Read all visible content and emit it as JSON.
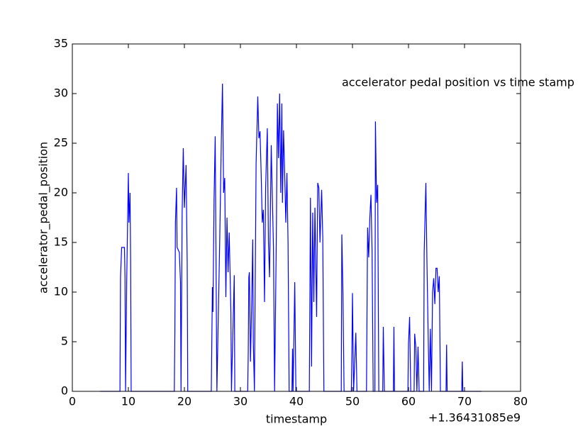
{
  "chart_data": {
    "type": "line",
    "title": "accelerator pedal position vs time stamp",
    "x_label": "timestamp",
    "y_label": "accelerator_pedal_position",
    "x_offset_label": "+1.36431085e9",
    "x": [
      5,
      8.5,
      8.6,
      8.8,
      9.3,
      9.4,
      9.5,
      9.7,
      10,
      10.1,
      10.3,
      10.4,
      10.5,
      18.2,
      18.3,
      18.4,
      18.6,
      18.7,
      19.1,
      19.3,
      19.4,
      19.6,
      19.8,
      20,
      20.3,
      20.5,
      20.6,
      24.8,
      25,
      25.1,
      25.3,
      25.5,
      25.6,
      25.8,
      26.3,
      26.6,
      26.8,
      27,
      27.2,
      27.4,
      27.6,
      27.8,
      28,
      28.3,
      28.4,
      28.9,
      29,
      31.3,
      31.4,
      31.5,
      31.6,
      31.8,
      32,
      32.2,
      32.3,
      32.5,
      32.8,
      33.1,
      33.3,
      33.5,
      33.7,
      33.9,
      34.1,
      34.3,
      34.5,
      34.8,
      35,
      35.2,
      35.5,
      35.7,
      35.9,
      36.1,
      36.4,
      36.6,
      36.8,
      37,
      37.2,
      37.4,
      37.5,
      37.7,
      37.9,
      38.1,
      38.3,
      38.5,
      38.7,
      39.2,
      39.3,
      39.4,
      39.7,
      39.9,
      42.3,
      42.5,
      42.7,
      42.9,
      43.1,
      43.3,
      43.6,
      43.8,
      44,
      44.2,
      44.5,
      44.7,
      44.9,
      48,
      48.1,
      48.3,
      48.5,
      49.8,
      49.9,
      50,
      50.2,
      50.6,
      50.8,
      52.5,
      52.7,
      52.9,
      53.1,
      53.3,
      53.5,
      53.7,
      54,
      54.1,
      54.3,
      54.5,
      54.7,
      55.4,
      55.5,
      55.7,
      57.3,
      57.4,
      57.5,
      59.9,
      60,
      60.2,
      60.4,
      61,
      61.1,
      61.3,
      61.5,
      61.7,
      61.9,
      62.7,
      62.8,
      63.1,
      63.3,
      63.5,
      63.7,
      63.9,
      64.1,
      64.3,
      64.5,
      64.7,
      64.9,
      65.1,
      65.3,
      65.5,
      65.7,
      66.7,
      66.8,
      66.9,
      69.5,
      69.6,
      69.7,
      73
    ],
    "series": [
      {
        "name": "accelerator_pedal_position",
        "color": "#0000ff",
        "values": [
          0,
          0,
          11.5,
          14.5,
          14.5,
          11.5,
          0,
          11,
          22,
          17,
          20,
          13.5,
          0,
          0,
          6,
          17,
          20.5,
          14.5,
          14,
          11,
          0,
          18,
          24.5,
          18.5,
          22.8,
          13,
          0,
          0,
          10.5,
          8,
          19.5,
          25.7,
          17,
          0,
          15,
          25.5,
          31,
          20,
          21.5,
          9.5,
          17.5,
          12,
          16,
          8,
          0,
          11.7,
          0,
          0,
          4,
          11.5,
          12,
          3,
          8.5,
          15.3,
          5,
          0,
          23,
          29.7,
          25.5,
          26.2,
          22,
          17,
          18.3,
          9,
          20.5,
          26.5,
          15,
          11.5,
          24.8,
          19.5,
          14.5,
          0,
          15,
          29,
          23.5,
          30,
          20,
          29,
          19,
          26.3,
          22,
          17,
          22,
          15,
          0,
          0,
          4.3,
          0,
          11,
          0,
          0,
          19.5,
          2.5,
          18,
          9,
          18.5,
          7.5,
          21,
          20.5,
          15,
          20.3,
          15.5,
          0,
          0,
          15.8,
          10,
          0,
          0,
          4,
          9.9,
          0,
          5.9,
          0,
          0,
          16.5,
          13.5,
          17.5,
          19.8,
          14,
          0,
          0,
          27.2,
          19,
          20.8,
          0,
          0,
          6.5,
          0,
          0,
          6.5,
          0,
          0,
          4.8,
          7.5,
          0,
          0,
          5.8,
          4.5,
          0,
          4.5,
          0,
          0,
          14,
          21,
          12.8,
          6,
          0,
          6.3,
          0,
          10,
          11.4,
          8.8,
          12.4,
          12.4,
          10,
          11.6,
          0,
          0,
          4.7,
          0,
          0,
          3,
          0,
          0
        ]
      }
    ],
    "xlim": [
      0,
      80
    ],
    "ylim": [
      0,
      35
    ],
    "xticks": [
      0,
      10,
      20,
      30,
      40,
      50,
      60,
      70,
      80
    ],
    "yticks": [
      0,
      5,
      10,
      15,
      20,
      25,
      30,
      35
    ]
  }
}
